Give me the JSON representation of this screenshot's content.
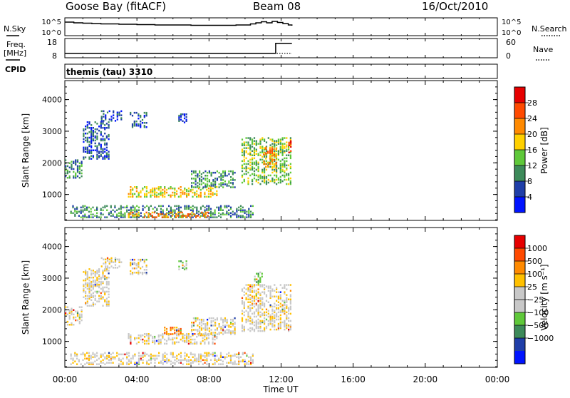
{
  "header": {
    "station": "Goose Bay (fitACF)",
    "beam": "Beam 08",
    "date": "16/Oct/2010"
  },
  "left_labels": {
    "nsky": "N.Sky",
    "freq_line1": "Freq.",
    "freq_line2": "[MHz]",
    "cpid": "CPID"
  },
  "right_labels": {
    "nsearch": "N.Search",
    "nave": "Nave"
  },
  "cpid_text": "themis (tau) 3310",
  "colors": {
    "power": [
      "#0014ff",
      "#1f3ea8",
      "#3d8a5a",
      "#5fc83a",
      "#ffd000",
      "#ff8a00",
      "#ff4a00",
      "#e60000"
    ],
    "velocity": [
      "#e60000",
      "#ff4a00",
      "#ff8a00",
      "#ffc000",
      "#c8c8c8",
      "#c8c8c8",
      "#5fc83a",
      "#3d8a5a",
      "#1f3ea8",
      "#0014ff"
    ]
  },
  "chart_data": [
    {
      "type": "line",
      "panel": "noise",
      "x_unit": "hours UT",
      "ylim_left": [
        "10^0",
        "10^5"
      ],
      "ylim_right": [
        "10^0",
        "10^5"
      ],
      "left_ticks": [
        "10^5",
        "10^0"
      ],
      "right_ticks": [
        "10^5",
        "10^0"
      ],
      "series": [
        {
          "name": "N.Sky",
          "style": "solid",
          "x": [
            0,
            0.5,
            1,
            1.5,
            2,
            2.5,
            3,
            3.5,
            4,
            4.5,
            5,
            5.5,
            6,
            6.5,
            7,
            7.5,
            8,
            8.5,
            9,
            9.5,
            10,
            10.3,
            10.6,
            10.9,
            11.2,
            11.5,
            11.8,
            12.1,
            12.4,
            12.6
          ],
          "y_log": [
            3.8,
            3.6,
            3.5,
            3.4,
            3.3,
            3.3,
            3.2,
            3.2,
            3.1,
            3.1,
            3.0,
            3.0,
            3.0,
            3.0,
            2.9,
            2.9,
            2.9,
            2.9,
            2.9,
            3.0,
            3.0,
            3.3,
            3.6,
            3.9,
            3.6,
            4.0,
            3.7,
            3.4,
            3.0,
            2.8
          ]
        },
        {
          "name": "N.Search",
          "style": "dotted",
          "x": [],
          "y_log": []
        }
      ]
    },
    {
      "type": "line",
      "panel": "frequency",
      "ylim_left": [
        8,
        18
      ],
      "ylim_right": [
        0,
        60
      ],
      "left_ticks": [
        "18",
        "8"
      ],
      "right_ticks": [
        "60",
        "0"
      ],
      "series": [
        {
          "name": "Freq.",
          "style": "solid",
          "x": [
            0,
            11.7,
            11.7,
            12.6
          ],
          "y": [
            10.3,
            10.3,
            15.5,
            15.5
          ]
        },
        {
          "name": "Nave",
          "style": "dotted",
          "x": [
            0,
            12.6
          ],
          "y_right": [
            14,
            14
          ]
        }
      ]
    },
    {
      "type": "heatmap",
      "panel": "power",
      "ylabel": "Slant Range [km]",
      "y_ticks": [
        1000,
        2000,
        3000,
        4000
      ],
      "ylim": [
        180,
        4600
      ],
      "xlim": [
        0,
        24
      ],
      "colorbar_label": "Power [dB]",
      "colorbar_ticks": [
        "4",
        "8",
        "12",
        "16",
        "20",
        "24",
        "28"
      ],
      "regions": [
        {
          "x_range": [
            0,
            1.0
          ],
          "y_range": [
            1500,
            2100
          ],
          "level": 2
        },
        {
          "x_range": [
            1.0,
            2.5
          ],
          "y_range": [
            2100,
            3300
          ],
          "level": 1
        },
        {
          "x_range": [
            2.0,
            3.2
          ],
          "y_range": [
            3300,
            3650
          ],
          "level": 1
        },
        {
          "x_range": [
            3.6,
            4.6
          ],
          "y_range": [
            3100,
            3600
          ],
          "level": 1
        },
        {
          "x_range": [
            6.3,
            6.8
          ],
          "y_range": [
            3250,
            3550
          ],
          "level": 1
        },
        {
          "x_range": [
            3.5,
            8.5
          ],
          "y_range": [
            900,
            1250
          ],
          "level": 4
        },
        {
          "x_range": [
            7.0,
            9.5
          ],
          "y_range": [
            1200,
            1750
          ],
          "level": 2
        },
        {
          "x_range": [
            0.3,
            10.5
          ],
          "y_range": [
            250,
            650
          ],
          "level": 2
        },
        {
          "x_range": [
            3.5,
            8.0
          ],
          "y_range": [
            250,
            450
          ],
          "level": 5
        },
        {
          "x_range": [
            9.8,
            12.6
          ],
          "y_range": [
            1300,
            2800
          ],
          "level": 3
        },
        {
          "x_range": [
            11.0,
            11.8
          ],
          "y_range": [
            1800,
            2500
          ],
          "level": 5
        },
        {
          "x_range": [
            12.4,
            12.6
          ],
          "y_range": [
            2300,
            2700
          ],
          "level": 7
        }
      ]
    },
    {
      "type": "heatmap",
      "panel": "velocity",
      "ylabel": "Slant Range [km]",
      "y_ticks": [
        1000,
        2000,
        3000,
        4000
      ],
      "ylim": [
        180,
        4600
      ],
      "xlim": [
        0,
        24
      ],
      "xlabel": "Time UT",
      "x_ticks": [
        "00:00",
        "04:00",
        "08:00",
        "12:00",
        "16:00",
        "20:00",
        "00:00"
      ],
      "colorbar_label": "Velocity [m s⁻¹]",
      "colorbar_ticks": [
        "1000",
        "500",
        "100",
        "25",
        "−25",
        "−100",
        "−500",
        "−1000"
      ],
      "regions": [
        {
          "x_range": [
            0,
            1.0
          ],
          "y_range": [
            1500,
            2100
          ],
          "level": 4
        },
        {
          "x_range": [
            1.0,
            2.5
          ],
          "y_range": [
            2100,
            3300
          ],
          "level": 4
        },
        {
          "x_range": [
            2.0,
            3.2
          ],
          "y_range": [
            3300,
            3650
          ],
          "level": 4
        },
        {
          "x_range": [
            3.6,
            4.6
          ],
          "y_range": [
            3100,
            3600
          ],
          "level": 4
        },
        {
          "x_range": [
            6.3,
            6.8
          ],
          "y_range": [
            3250,
            3550
          ],
          "level": 6
        },
        {
          "x_range": [
            3.5,
            8.5
          ],
          "y_range": [
            900,
            1250
          ],
          "level": 4
        },
        {
          "x_range": [
            5.5,
            6.5
          ],
          "y_range": [
            1200,
            1450
          ],
          "level": 2
        },
        {
          "x_range": [
            7.0,
            9.5
          ],
          "y_range": [
            1200,
            1750
          ],
          "level": 4
        },
        {
          "x_range": [
            0.3,
            10.5
          ],
          "y_range": [
            250,
            650
          ],
          "level": 4
        },
        {
          "x_range": [
            9.8,
            12.6
          ],
          "y_range": [
            1300,
            2800
          ],
          "level": 4
        },
        {
          "x_range": [
            10.5,
            11.0
          ],
          "y_range": [
            2800,
            3200
          ],
          "level": 6
        }
      ]
    }
  ]
}
